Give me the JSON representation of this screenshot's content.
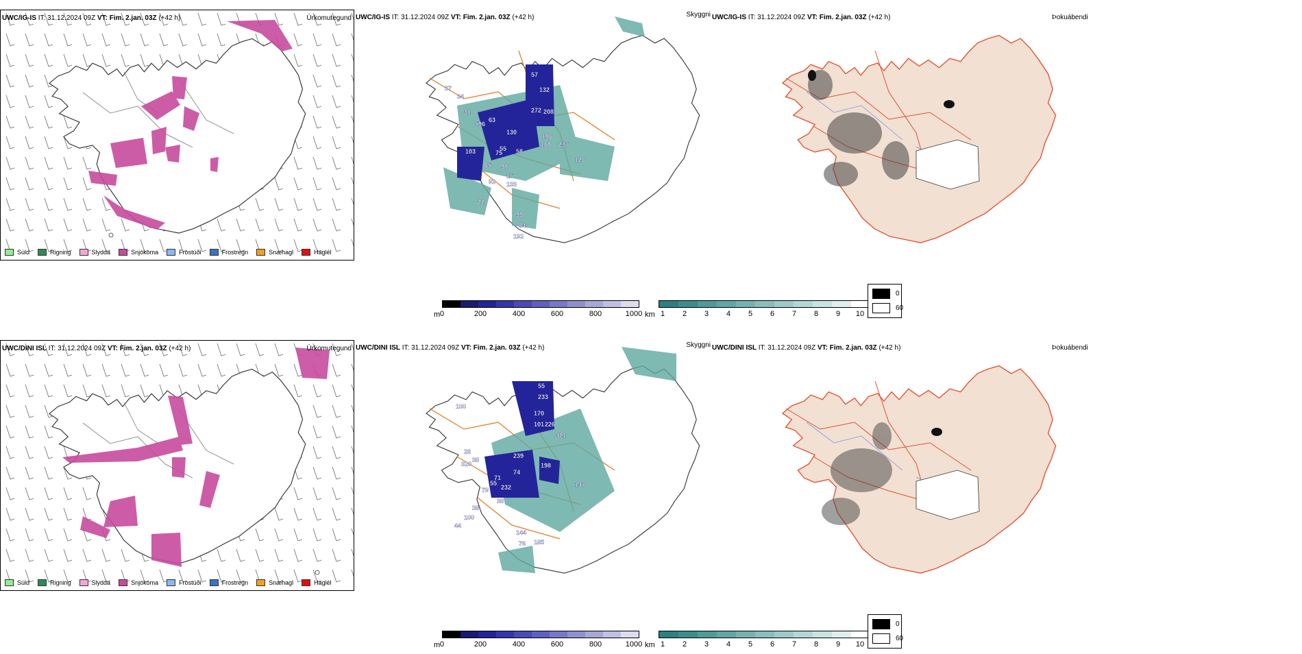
{
  "rows": [
    {
      "model": "UWC/IG-IS",
      "it": "IT: 31.12.2024 09Z",
      "vt_label": "VT:",
      "vt": "Fim. 2.jan. 03Z",
      "lead": "(+42 h)"
    },
    {
      "model": "UWC/DINI ISL",
      "it": "IT: 31.12.2024 09Z",
      "vt_label": "VT:",
      "vt": "Fim. 2.jan. 03Z",
      "lead": "(+42 h)"
    }
  ],
  "panel_titles": {
    "precip_type": "Úrkomutegund",
    "cloud_base": "Skyggni",
    "fog": "Þokuábendi"
  },
  "precip_legend": [
    {
      "label": "Súld",
      "color": "#90ee90"
    },
    {
      "label": "Rigning",
      "color": "#2e8b57"
    },
    {
      "label": "Slydda",
      "color": "#f4a6d7"
    },
    {
      "label": "Snjókoma",
      "color": "#c84b9e"
    },
    {
      "label": "Frostúði",
      "color": "#87b9f0"
    },
    {
      "label": "Frostregn",
      "color": "#3a74c4"
    },
    {
      "label": "Snæhagl",
      "color": "#f0a020"
    },
    {
      "label": "Haglél",
      "color": "#e01010"
    }
  ],
  "ceiling_scale": {
    "unit": "m",
    "ticks": [
      "0",
      "200",
      "400",
      "600",
      "800",
      "1000"
    ],
    "colors": [
      "#000000",
      "#1a1a70",
      "#24249a",
      "#3535b0",
      "#4a4ab8",
      "#6060c0",
      "#7878c8",
      "#9090d0",
      "#a8a8d8",
      "#c0c0e4",
      "#dcdcf0"
    ]
  },
  "visibility_scale": {
    "unit": "km",
    "ticks": [
      "1",
      "2",
      "3",
      "4",
      "5",
      "6",
      "7",
      "8",
      "9",
      "10"
    ],
    "colors": [
      "#2e8080",
      "#3d8d8d",
      "#509a9a",
      "#62a6a6",
      "#76b2b2",
      "#8abebe",
      "#9ecaca",
      "#b4d6d6",
      "#cae2e2",
      "#e0eeee",
      "#ffffff"
    ]
  },
  "sunshine_scale": {
    "values": [
      "0",
      "60"
    ]
  },
  "ceiling_labels_top": [
    "57",
    "132",
    "37",
    "34",
    "31",
    "63",
    "272",
    "208",
    "596",
    "130",
    "186",
    "237",
    "103",
    "55",
    "58",
    "160",
    "75",
    "65",
    "98",
    "126",
    "15",
    "92",
    "133",
    "22",
    "99",
    "84",
    "192"
  ],
  "ceiling_labels_bottom": [
    "55",
    "233",
    "100",
    "170",
    "101",
    "226",
    "421",
    "28",
    "239",
    "198",
    "320",
    "38",
    "71",
    "74",
    "55",
    "232",
    "147",
    "79",
    "38",
    "38",
    "100",
    "44",
    "76",
    "185",
    "144"
  ]
}
